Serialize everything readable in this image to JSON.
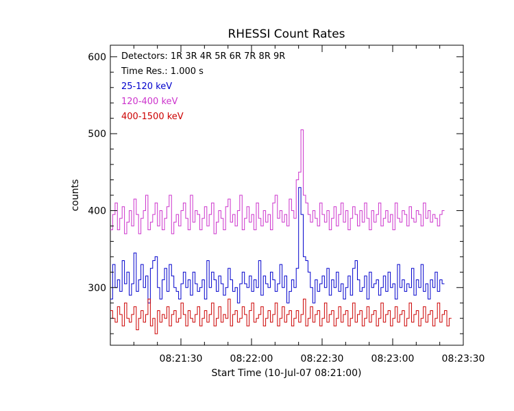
{
  "chart_data": {
    "type": "line",
    "title": "RHESSI Count Rates",
    "xlabel": "Start Time (10-Jul-07 08:21:00)",
    "ylabel": "counts",
    "xlim": [
      "08:21:00",
      "08:23:30"
    ],
    "ylim": [
      225,
      615
    ],
    "x_ticks": [
      "08:21:30",
      "08:22:00",
      "08:22:30",
      "08:23:00",
      "08:23:30"
    ],
    "y_ticks": [
      300,
      400,
      500,
      600
    ],
    "grid": false,
    "legend_placement": "top-left",
    "annotations": [
      "Detectors:  1R 3R 4R 5R 6R 7R 8R 9R",
      "Time Res.: 1.000 s"
    ],
    "x_start": "08:21:00",
    "x_step_seconds": 1,
    "series": [
      {
        "name": "25-120 keV",
        "color": "#0000cc",
        "values": [
          285,
          330,
          300,
          310,
          295,
          335,
          305,
          320,
          290,
          305,
          345,
          295,
          310,
          330,
          300,
          315,
          280,
          325,
          335,
          340,
          300,
          285,
          310,
          325,
          295,
          330,
          315,
          300,
          295,
          285,
          305,
          320,
          300,
          310,
          290,
          320,
          305,
          295,
          300,
          310,
          285,
          335,
          300,
          320,
          310,
          295,
          315,
          305,
          290,
          300,
          325,
          310,
          295,
          300,
          280,
          305,
          320,
          305,
          300,
          315,
          295,
          310,
          300,
          335,
          290,
          315,
          305,
          300,
          320,
          310,
          295,
          305,
          330,
          300,
          315,
          280,
          295,
          310,
          300,
          325,
          430,
          395,
          340,
          335,
          320,
          300,
          280,
          310,
          295,
          305,
          315,
          300,
          325,
          290,
          310,
          300,
          320,
          295,
          305,
          285,
          300,
          315,
          290,
          325,
          335,
          310,
          295,
          300,
          315,
          285,
          320,
          300,
          305,
          310,
          290,
          300,
          315,
          295,
          320,
          300,
          305,
          285,
          330,
          300,
          310,
          295,
          305,
          300,
          325,
          290,
          310,
          300,
          330,
          295,
          305,
          285,
          310,
          300,
          320,
          295,
          310,
          305
        ]
      },
      {
        "name": "120-400 keV",
        "color": "#cc33cc",
        "values": [
          375,
          395,
          410,
          375,
          390,
          405,
          370,
          385,
          400,
          380,
          415,
          395,
          370,
          390,
          400,
          420,
          375,
          385,
          395,
          410,
          380,
          400,
          375,
          390,
          405,
          420,
          370,
          385,
          395,
          380,
          400,
          410,
          390,
          375,
          420,
          385,
          400,
          395,
          375,
          390,
          405,
          380,
          395,
          410,
          370,
          385,
          400,
          390,
          375,
          405,
          415,
          385,
          395,
          380,
          400,
          420,
          375,
          390,
          405,
          385,
          395,
          375,
          410,
          390,
          380,
          400,
          385,
          395,
          375,
          410,
          420,
          390,
          400,
          385,
          395,
          380,
          415,
          400,
          390,
          440,
          450,
          505,
          420,
          410,
          395,
          385,
          400,
          390,
          380,
          410,
          395,
          385,
          400,
          375,
          390,
          405,
          380,
          395,
          410,
          385,
          400,
          375,
          390,
          405,
          395,
          380,
          400,
          385,
          410,
          390,
          375,
          400,
          385,
          395,
          410,
          380,
          390,
          400,
          385,
          395,
          375,
          410,
          390,
          385,
          400,
          395,
          380,
          405,
          390,
          385,
          400,
          395,
          380,
          410,
          390,
          400,
          385,
          395,
          390,
          380,
          395,
          400
        ]
      },
      {
        "name": "400-1500 keV",
        "color": "#cc0000",
        "values": [
          270,
          260,
          255,
          275,
          265,
          250,
          280,
          260,
          255,
          265,
          275,
          245,
          260,
          270,
          255,
          265,
          285,
          250,
          260,
          240,
          270,
          255,
          265,
          260,
          275,
          250,
          265,
          270,
          255,
          260,
          280,
          265,
          250,
          270,
          260,
          255,
          265,
          275,
          250,
          260,
          270,
          255,
          265,
          280,
          250,
          260,
          275,
          255,
          265,
          260,
          285,
          250,
          265,
          270,
          255,
          260,
          275,
          265,
          250,
          270,
          280,
          255,
          260,
          265,
          275,
          250,
          260,
          270,
          255,
          265,
          280,
          250,
          260,
          275,
          255,
          265,
          270,
          250,
          260,
          270,
          255,
          265,
          285,
          250,
          260,
          275,
          255,
          265,
          270,
          250,
          260,
          280,
          255,
          265,
          270,
          250,
          260,
          275,
          255,
          265,
          270,
          250,
          260,
          280,
          255,
          265,
          270,
          250,
          260,
          275,
          255,
          265,
          270,
          250,
          260,
          280,
          255,
          265,
          270,
          250,
          260,
          275,
          255,
          265,
          270,
          250,
          260,
          280,
          255,
          265,
          270,
          250,
          260,
          275,
          255,
          265,
          270,
          250,
          260,
          280,
          255,
          265,
          270,
          250,
          260
        ]
      }
    ]
  }
}
